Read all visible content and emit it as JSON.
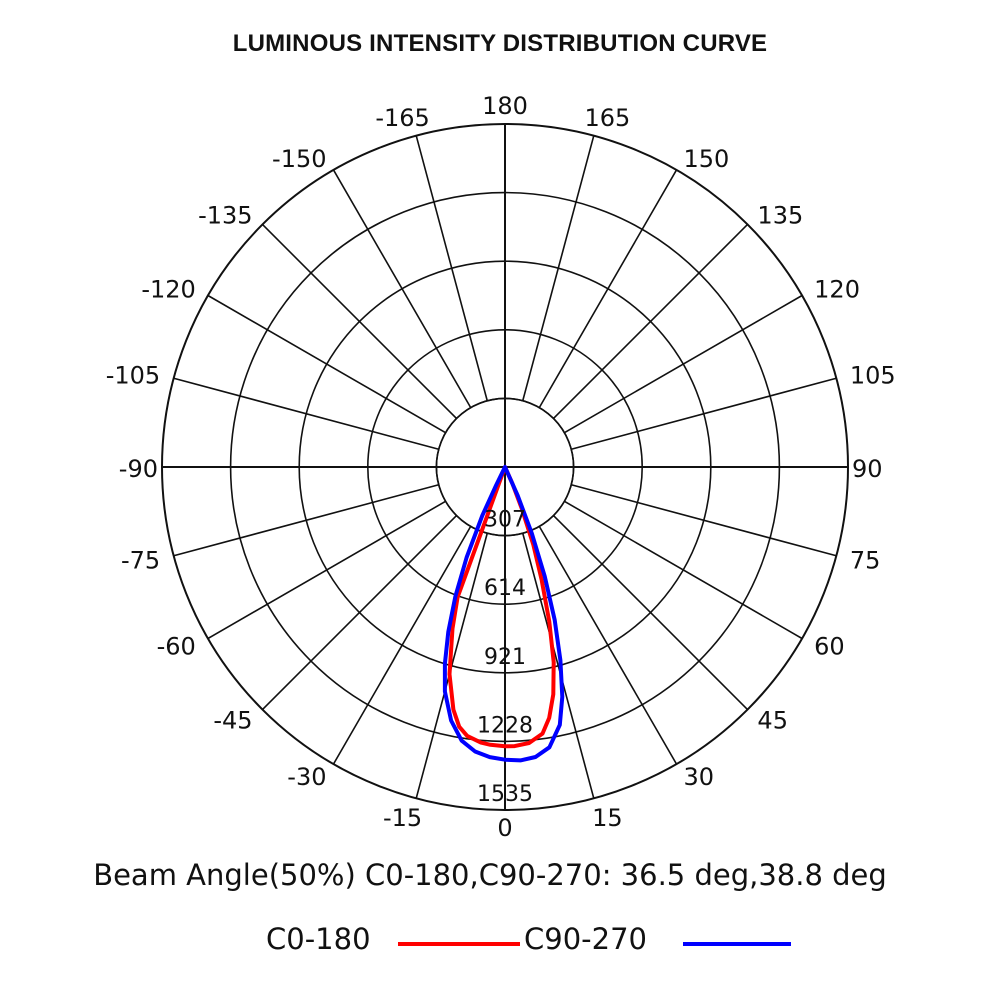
{
  "chart_data": {
    "type": "polar",
    "title": "LUMINOUS INTENSITY DISTRIBUTION CURVE",
    "angle_ticks": [
      "180",
      "165",
      "150",
      "135",
      "120",
      "105",
      "90",
      "75",
      "60",
      "45",
      "30",
      "15",
      "0",
      "-15",
      "-30",
      "-45",
      "-60",
      "-75",
      "-90",
      "-105",
      "-120",
      "-135",
      "-150",
      "-165"
    ],
    "angle_values": [
      180,
      165,
      150,
      135,
      120,
      105,
      90,
      75,
      60,
      45,
      30,
      15,
      0,
      -15,
      -30,
      -45,
      -60,
      -75,
      -90,
      -105,
      -120,
      -135,
      -150,
      -165
    ],
    "radial_ticks": [
      "307",
      "614",
      "921",
      "1228",
      "1535"
    ],
    "radial_values": [
      307,
      614,
      921,
      1228,
      1535
    ],
    "rlim": [
      0,
      1535
    ],
    "grid": true,
    "beam_angle_text": "Beam Angle(50%) C0-180,C90-270: 36.5 deg,38.8 deg",
    "series": [
      {
        "name": "C0-180",
        "color": "#ff0000",
        "points": [
          {
            "angle": -20,
            "value": 620
          },
          {
            "angle": -18,
            "value": 760
          },
          {
            "angle": -15,
            "value": 960
          },
          {
            "angle": -12,
            "value": 1110
          },
          {
            "angle": -10,
            "value": 1180
          },
          {
            "angle": -8,
            "value": 1215
          },
          {
            "angle": -5,
            "value": 1238
          },
          {
            "angle": -3,
            "value": 1245
          },
          {
            "angle": 0,
            "value": 1250
          },
          {
            "angle": 2,
            "value": 1250
          },
          {
            "angle": 5,
            "value": 1240
          },
          {
            "angle": 8,
            "value": 1205
          },
          {
            "angle": 10,
            "value": 1140
          },
          {
            "angle": 12,
            "value": 1040
          },
          {
            "angle": 14,
            "value": 900
          },
          {
            "angle": 16,
            "value": 720
          },
          {
            "angle": 18,
            "value": 530
          },
          {
            "angle": 20,
            "value": 370
          },
          {
            "angle": 22,
            "value": 200
          },
          {
            "angle": 24,
            "value": 80
          },
          {
            "angle": 25,
            "value": 0
          }
        ]
      },
      {
        "name": "C90-270",
        "color": "#0000ff",
        "points": [
          {
            "angle": -27,
            "value": 0
          },
          {
            "angle": -26,
            "value": 90
          },
          {
            "angle": -25,
            "value": 240
          },
          {
            "angle": -23,
            "value": 440
          },
          {
            "angle": -21,
            "value": 620
          },
          {
            "angle": -19,
            "value": 780
          },
          {
            "angle": -17,
            "value": 920
          },
          {
            "angle": -15,
            "value": 1040
          },
          {
            "angle": -12,
            "value": 1160
          },
          {
            "angle": -9,
            "value": 1240
          },
          {
            "angle": -6,
            "value": 1280
          },
          {
            "angle": -3,
            "value": 1300
          },
          {
            "angle": 0,
            "value": 1310
          },
          {
            "angle": 3,
            "value": 1315
          },
          {
            "angle": 6,
            "value": 1305
          },
          {
            "angle": 9,
            "value": 1270
          },
          {
            "angle": 12,
            "value": 1180
          },
          {
            "angle": 14,
            "value": 1060
          },
          {
            "angle": 16,
            "value": 900
          },
          {
            "angle": 18,
            "value": 720
          },
          {
            "angle": 20,
            "value": 520
          },
          {
            "angle": 22,
            "value": 320
          },
          {
            "angle": 24,
            "value": 140
          },
          {
            "angle": 25,
            "value": 0
          }
        ]
      }
    ]
  }
}
